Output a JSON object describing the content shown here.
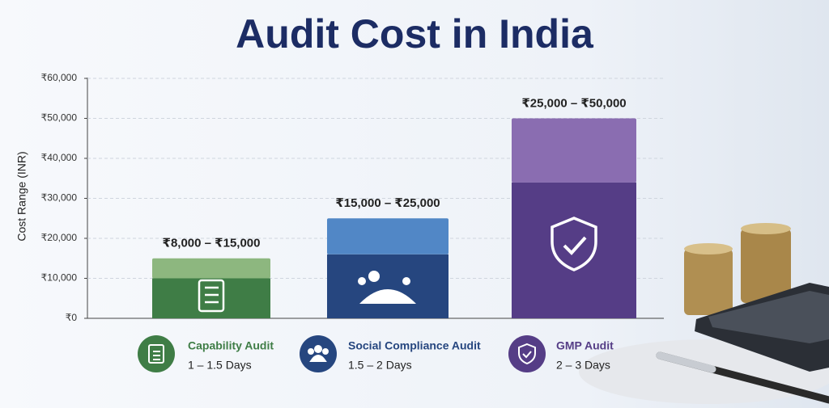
{
  "chart_data": {
    "type": "stacked-bar",
    "title": "Audit Cost in India",
    "ylabel": "Cost Range (INR)",
    "categories": [
      "Capability Audit",
      "Social Compliance Audit",
      "GMP Audit"
    ],
    "durations": [
      "1 – 1.5 Days",
      "1.5 – 2 Days",
      "2 – 3 Days"
    ],
    "range_labels": [
      "₹8,000 – ₹15,000",
      "₹15,000 – ₹25,000",
      "₹25,000 – ₹50,000"
    ],
    "series": [
      {
        "values": [
          10000,
          16000,
          34000
        ],
        "colors": [
          "#3f7d46",
          "#26467f",
          "#553d86"
        ]
      },
      {
        "values": [
          5000,
          9000,
          16000
        ],
        "colors": [
          "#8db77f",
          "#5187c6",
          "#8a6db1"
        ]
      }
    ],
    "ylim": [
      0,
      60000
    ],
    "yticks": [
      {
        "value": 0,
        "label": "₹0"
      },
      {
        "value": 10000,
        "label": "₹10,000"
      },
      {
        "value": 20000,
        "label": "₹20,000"
      },
      {
        "value": 30000,
        "label": "₹30,000"
      },
      {
        "value": 40000,
        "label": "₹40,000"
      },
      {
        "value": 50000,
        "label": "₹50,000"
      },
      {
        "value": 60000,
        "label": "₹60,000"
      }
    ],
    "grid": true
  }
}
